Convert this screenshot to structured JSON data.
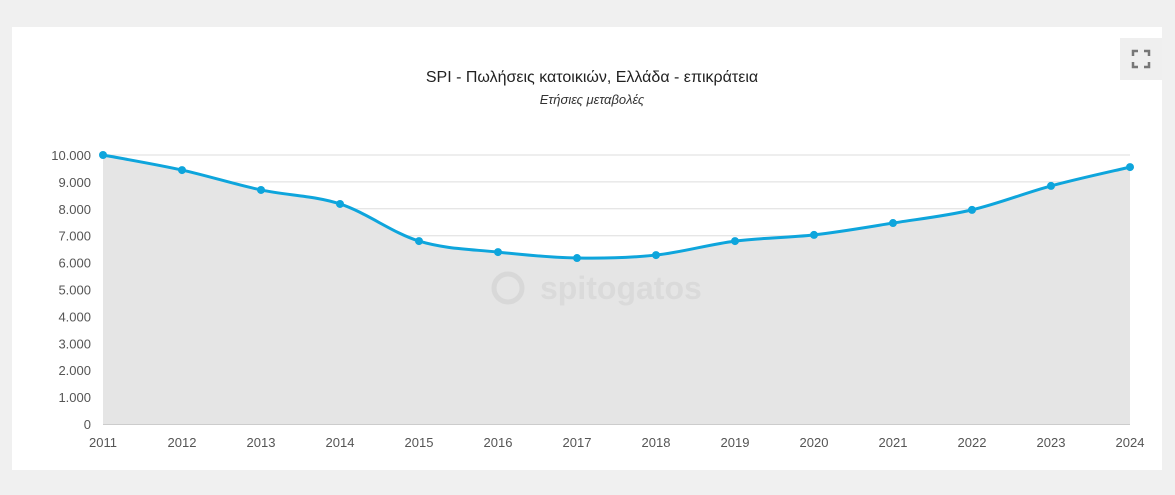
{
  "chart_data": {
    "type": "area",
    "title": "SPI - Πωλήσεις κατοικιών, Ελλάδα - επικράτεια",
    "subtitle": "Ετήσιες μεταβολές",
    "x": [
      "2011",
      "2012",
      "2013",
      "2014",
      "2015",
      "2016",
      "2017",
      "2018",
      "2019",
      "2020",
      "2021",
      "2022",
      "2023",
      "2024"
    ],
    "values": [
      10000,
      9440,
      8700,
      8180,
      6800,
      6390,
      6170,
      6280,
      6800,
      7030,
      7470,
      7960,
      8850,
      9550
    ],
    "ylim": [
      0,
      10000
    ],
    "yticks": [
      "0",
      "1.000",
      "2.000",
      "3.000",
      "4.000",
      "5.000",
      "6.000",
      "7.000",
      "8.000",
      "9.000",
      "10.000"
    ],
    "grid": true,
    "legend": "none",
    "colors": {
      "line": "#0ea5dc",
      "area": "#e5e5e5",
      "grid": "#dddddd"
    },
    "watermark": "spitogatos"
  },
  "toolbar": {
    "fullscreen_icon": "fullscreen-icon"
  }
}
